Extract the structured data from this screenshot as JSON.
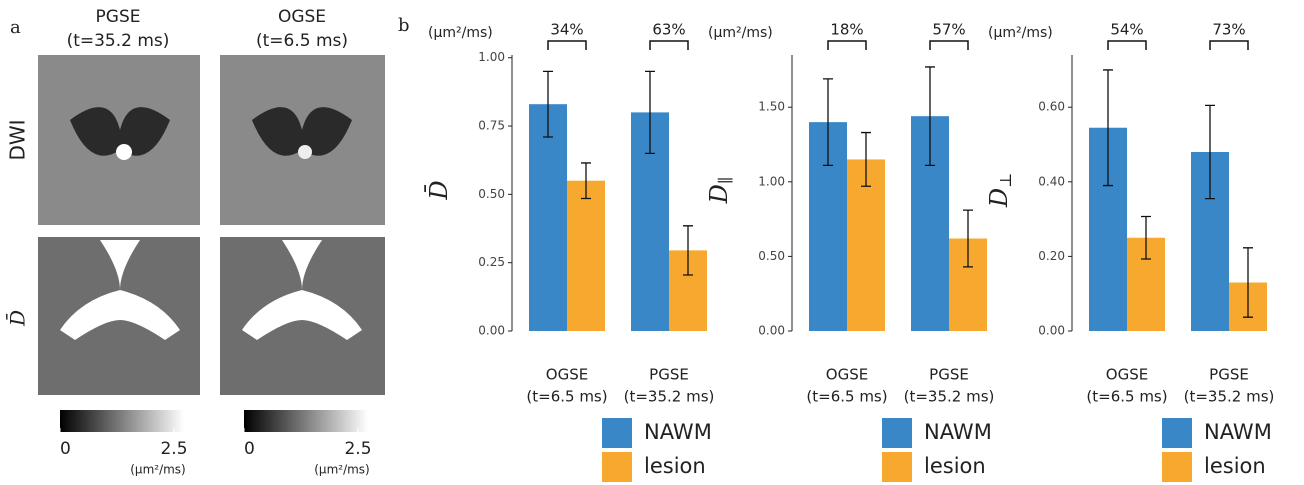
{
  "panel_a": {
    "label": "a",
    "columns": [
      {
        "name": "PGSE",
        "note": "(t=35.2 ms)"
      },
      {
        "name": "OGSE",
        "note": "(t=6.5 ms)"
      }
    ],
    "rows": [
      "DWI",
      "D̄"
    ],
    "colorbar": {
      "lim": [
        0,
        2.5
      ],
      "ticks": [
        0,
        2.5
      ],
      "unit": "(µm²/ms)"
    }
  },
  "panel_b": {
    "label": "b"
  },
  "chart_data": [
    {
      "type": "bar",
      "unit": "(µm²/ms)",
      "y_label": {
        "main": "D̄",
        "sub": ""
      },
      "categories": [
        "OGSE",
        "PGSE"
      ],
      "category_notes": [
        "(t=6.5 ms)",
        "(t=35.2 ms)"
      ],
      "series": [
        {
          "name": "NAWM",
          "color": "#3a87c8",
          "values": [
            0.83,
            0.8
          ],
          "errors": [
            0.12,
            0.15
          ]
        },
        {
          "name": "lesion",
          "color": "#f6a92e",
          "values": [
            0.55,
            0.295
          ],
          "errors": [
            0.065,
            0.09
          ]
        }
      ],
      "differences": {
        "values": [
          34,
          63
        ],
        "value_labels": [
          "34%",
          "63%"
        ]
      },
      "ylim": [
        0,
        1.01
      ],
      "yticks": [
        {
          "value": 0,
          "label": "0.00"
        },
        {
          "value": 0.25,
          "label": "0.25"
        },
        {
          "value": 0.5,
          "label": "0.50"
        },
        {
          "value": 0.75,
          "label": "0.75"
        },
        {
          "value": 1,
          "label": "1.00"
        }
      ]
    },
    {
      "type": "bar",
      "unit": "(µm²/ms)",
      "y_label": {
        "main": "D",
        "sub": "∥"
      },
      "categories": [
        "OGSE",
        "PGSE"
      ],
      "category_notes": [
        "(t=6.5 ms)",
        "(t=35.2 ms)"
      ],
      "series": [
        {
          "name": "NAWM",
          "color": "#3a87c8",
          "values": [
            1.4,
            1.44
          ],
          "errors": [
            0.29,
            0.33
          ]
        },
        {
          "name": "lesion",
          "color": "#f6a92e",
          "values": [
            1.15,
            0.62
          ],
          "errors": [
            0.18,
            0.19
          ]
        }
      ],
      "differences": {
        "values": [
          18,
          57
        ],
        "value_labels": [
          "18%",
          "57%"
        ]
      },
      "ylim": [
        0,
        1.85
      ],
      "yticks": [
        {
          "value": 0,
          "label": "0.00"
        },
        {
          "value": 0.5,
          "label": "0.50"
        },
        {
          "value": 1,
          "label": "1.00"
        },
        {
          "value": 1.5,
          "label": "1.50"
        }
      ]
    },
    {
      "type": "bar",
      "unit": "(µm²/ms)",
      "y_label": {
        "main": "D",
        "sub": "⊥"
      },
      "categories": [
        "OGSE",
        "PGSE"
      ],
      "category_notes": [
        "(t=6.5 ms)",
        "(t=35.2 ms)"
      ],
      "series": [
        {
          "name": "NAWM",
          "color": "#3a87c8",
          "values": [
            0.545,
            0.48
          ],
          "errors": [
            0.155,
            0.125
          ]
        },
        {
          "name": "lesion",
          "color": "#f6a92e",
          "values": [
            0.25,
            0.13
          ],
          "errors": [
            0.057,
            0.093
          ]
        }
      ],
      "differences": {
        "values": [
          54,
          73
        ],
        "value_labels": [
          "54%",
          "73%"
        ]
      },
      "ylim": [
        0,
        0.74
      ],
      "yticks": [
        {
          "value": 0,
          "label": "0.00"
        },
        {
          "value": 0.2,
          "label": "0.20"
        },
        {
          "value": 0.4,
          "label": "0.40"
        },
        {
          "value": 0.6,
          "label": "0.60"
        }
      ]
    }
  ]
}
